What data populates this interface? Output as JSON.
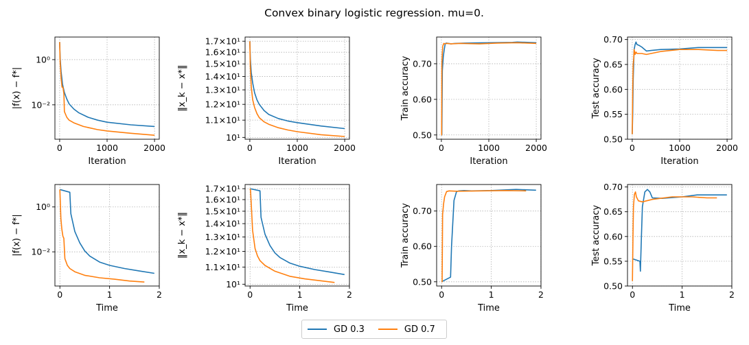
{
  "figure": {
    "title": "Convex binary logistic regression. mu=0."
  },
  "colors": {
    "gd03": "#1f77b4",
    "gd07": "#ff7f0e",
    "grid": "#b0b0b0"
  },
  "legend": [
    {
      "label": "GD 0.3",
      "color": "#1f77b4"
    },
    {
      "label": "GD 0.7",
      "color": "#ff7f0e"
    }
  ],
  "chart_data": [
    {
      "type": "line",
      "xlabel": "Iteration",
      "ylabel": "|f(x) − f*|",
      "yscale": "log",
      "xticks": [
        0,
        1000,
        2000
      ],
      "yticks": [
        0.01,
        1
      ],
      "yticklabels": [
        "10⁻²",
        "10⁰"
      ],
      "xlim": [
        -100,
        2100
      ],
      "ylim": [
        0.0003,
        10
      ],
      "grid": true,
      "series": [
        {
          "name": "GD 0.3",
          "x": [
            0,
            10,
            30,
            60,
            100,
            150,
            200,
            300,
            400,
            600,
            800,
            1000,
            1500,
            2000
          ],
          "y": [
            6,
            1.2,
            0.3,
            0.08,
            0.035,
            0.018,
            0.011,
            0.0065,
            0.0045,
            0.0028,
            0.0021,
            0.0017,
            0.0013,
            0.0011
          ]
        },
        {
          "name": "GD 0.7",
          "x": [
            0,
            10,
            30,
            50,
            70,
            90,
            100,
            150,
            200,
            300,
            500,
            800,
            1000,
            1500,
            2000
          ],
          "y": [
            6,
            0.8,
            0.15,
            0.06,
            0.06,
            0.03,
            0.005,
            0.0028,
            0.0021,
            0.0016,
            0.0011,
            0.0008,
            0.0007,
            0.00055,
            0.00045
          ]
        }
      ]
    },
    {
      "type": "line",
      "xlabel": "Iteration",
      "ylabel": "‖x_k − x*‖",
      "yscale": "log",
      "xticks": [
        0,
        1000,
        2000
      ],
      "yticks": [
        10,
        11,
        12,
        13,
        14,
        15,
        16,
        17
      ],
      "yticklabels": [
        "10¹",
        "1.1×10¹",
        "1.2×10¹",
        "1.3×10¹",
        "1.4×10¹",
        "1.5×10¹",
        "1.6×10¹",
        "1.7×10¹"
      ],
      "xlim": [
        -100,
        2100
      ],
      "ylim": [
        9.9,
        17.4
      ],
      "grid": true,
      "series": [
        {
          "name": "GD 0.3",
          "x": [
            0,
            10,
            30,
            60,
            100,
            150,
            200,
            300,
            400,
            600,
            800,
            1000,
            1500,
            2000
          ],
          "y": [
            17,
            15.5,
            14.3,
            13.5,
            12.8,
            12.3,
            12.0,
            11.6,
            11.35,
            11.1,
            10.95,
            10.85,
            10.65,
            10.5
          ]
        },
        {
          "name": "GD 0.7",
          "x": [
            0,
            10,
            30,
            60,
            100,
            150,
            200,
            300,
            400,
            600,
            800,
            1000,
            1500,
            2000
          ],
          "y": [
            17,
            14.8,
            13.2,
            12.3,
            11.8,
            11.4,
            11.15,
            10.9,
            10.75,
            10.55,
            10.42,
            10.32,
            10.15,
            10.05
          ]
        }
      ]
    },
    {
      "type": "line",
      "xlabel": "Iteration",
      "ylabel": "Train accuracy",
      "xticks": [
        0,
        1000,
        2000
      ],
      "yticks": [
        0.5,
        0.6,
        0.7
      ],
      "xlim": [
        -100,
        2100
      ],
      "ylim": [
        0.488,
        0.775
      ],
      "grid": true,
      "series": [
        {
          "name": "GD 0.3",
          "x": [
            0,
            10,
            20,
            40,
            60,
            80,
            100,
            150,
            200,
            300,
            500,
            1000,
            1500,
            1600,
            2000
          ],
          "y": [
            0.5,
            0.5,
            0.68,
            0.72,
            0.74,
            0.755,
            0.758,
            0.757,
            0.756,
            0.757,
            0.758,
            0.759,
            0.76,
            0.761,
            0.759
          ]
        },
        {
          "name": "GD 0.7",
          "x": [
            0,
            5,
            10,
            20,
            30,
            50,
            80,
            120,
            200,
            400,
            800,
            1200,
            1600,
            2000
          ],
          "y": [
            0.5,
            0.5,
            0.7,
            0.73,
            0.75,
            0.757,
            0.756,
            0.757,
            0.756,
            0.757,
            0.756,
            0.758,
            0.759,
            0.757
          ]
        }
      ]
    },
    {
      "type": "line",
      "xlabel": "Iteration",
      "ylabel": "Test accuracy",
      "xticks": [
        0,
        1000,
        2000
      ],
      "yticks": [
        0.5,
        0.55,
        0.6,
        0.65,
        0.7
      ],
      "xlim": [
        -100,
        2100
      ],
      "ylim": [
        0.5,
        0.705
      ],
      "grid": true,
      "series": [
        {
          "name": "GD 0.3",
          "x": [
            0,
            10,
            20,
            40,
            60,
            80,
            100,
            150,
            200,
            300,
            400,
            600,
            1000,
            1400,
            2000
          ],
          "y": [
            0.51,
            0.55,
            0.62,
            0.68,
            0.69,
            0.695,
            0.69,
            0.688,
            0.685,
            0.677,
            0.678,
            0.68,
            0.681,
            0.684,
            0.684
          ]
        },
        {
          "name": "GD 0.7",
          "x": [
            0,
            10,
            20,
            30,
            40,
            60,
            80,
            100,
            200,
            300,
            600,
            1000,
            1400,
            1800,
            2000
          ],
          "y": [
            0.51,
            0.6,
            0.65,
            0.66,
            0.68,
            0.67,
            0.675,
            0.672,
            0.672,
            0.67,
            0.676,
            0.68,
            0.68,
            0.678,
            0.678
          ]
        }
      ]
    },
    {
      "type": "line",
      "xlabel": "Time",
      "ylabel": "|f(x) − f*|",
      "yscale": "log",
      "xticks": [
        0,
        1,
        2
      ],
      "yticks": [
        0.01,
        1
      ],
      "yticklabels": [
        "10⁻²",
        "10⁰"
      ],
      "xlim": [
        -0.1,
        2.0
      ],
      "ylim": [
        0.0003,
        10
      ],
      "grid": true,
      "series": [
        {
          "name": "GD 0.3",
          "x": [
            0,
            0.2,
            0.22,
            0.3,
            0.4,
            0.5,
            0.6,
            0.8,
            1.0,
            1.3,
            1.6,
            1.9
          ],
          "y": [
            6,
            4.5,
            0.5,
            0.08,
            0.025,
            0.011,
            0.0065,
            0.0035,
            0.0025,
            0.0018,
            0.0014,
            0.0011
          ]
        },
        {
          "name": "GD 0.7",
          "x": [
            0,
            0.02,
            0.04,
            0.06,
            0.08,
            0.1,
            0.15,
            0.2,
            0.3,
            0.5,
            0.8,
            1.1,
            1.4,
            1.7
          ],
          "y": [
            6,
            0.3,
            0.1,
            0.05,
            0.04,
            0.005,
            0.0025,
            0.0018,
            0.0013,
            0.0009,
            0.0007,
            0.0006,
            0.0005,
            0.00045
          ]
        }
      ]
    },
    {
      "type": "line",
      "xlabel": "Time",
      "ylabel": "‖x_k − x*‖",
      "yscale": "log",
      "xticks": [
        0,
        1,
        2
      ],
      "yticks": [
        10,
        11,
        12,
        13,
        14,
        15,
        16,
        17
      ],
      "yticklabels": [
        "10¹",
        "1.1×10¹",
        "1.2×10¹",
        "1.3×10¹",
        "1.4×10¹",
        "1.5×10¹",
        "1.6×10¹",
        "1.7×10¹"
      ],
      "xlim": [
        -0.1,
        2.0
      ],
      "ylim": [
        9.9,
        17.4
      ],
      "grid": true,
      "series": [
        {
          "name": "GD 0.3",
          "x": [
            0,
            0.2,
            0.22,
            0.3,
            0.4,
            0.5,
            0.6,
            0.8,
            1.0,
            1.3,
            1.6,
            1.9
          ],
          "y": [
            17,
            16.8,
            14.5,
            13.2,
            12.4,
            11.9,
            11.6,
            11.25,
            11.05,
            10.85,
            10.7,
            10.55
          ]
        },
        {
          "name": "GD 0.7",
          "x": [
            0,
            0.01,
            0.05,
            0.1,
            0.15,
            0.2,
            0.3,
            0.5,
            0.8,
            1.1,
            1.4,
            1.7
          ],
          "y": [
            17,
            16.8,
            13.5,
            12.2,
            11.7,
            11.4,
            11.1,
            10.75,
            10.45,
            10.3,
            10.2,
            10.1
          ]
        }
      ]
    },
    {
      "type": "line",
      "xlabel": "Time",
      "ylabel": "Train accuracy",
      "xticks": [
        0,
        1,
        2
      ],
      "yticks": [
        0.5,
        0.6,
        0.7
      ],
      "xlim": [
        -0.1,
        2.0
      ],
      "ylim": [
        0.488,
        0.775
      ],
      "grid": true,
      "series": [
        {
          "name": "GD 0.3",
          "x": [
            0,
            0.18,
            0.2,
            0.25,
            0.3,
            0.35,
            0.45,
            0.6,
            1.0,
            1.5,
            1.9
          ],
          "y": [
            0.5,
            0.513,
            0.6,
            0.73,
            0.755,
            0.757,
            0.758,
            0.757,
            0.758,
            0.761,
            0.759
          ]
        },
        {
          "name": "GD 0.7",
          "x": [
            0,
            0.01,
            0.02,
            0.04,
            0.06,
            0.1,
            0.15,
            0.3,
            0.8,
            1.3,
            1.7
          ],
          "y": [
            0.5,
            0.5,
            0.69,
            0.72,
            0.74,
            0.755,
            0.757,
            0.756,
            0.757,
            0.758,
            0.757
          ]
        }
      ]
    },
    {
      "type": "line",
      "xlabel": "Time",
      "ylabel": "Test accuracy",
      "xticks": [
        0,
        1,
        2
      ],
      "yticks": [
        0.5,
        0.55,
        0.6,
        0.65,
        0.7
      ],
      "xlim": [
        -0.1,
        2.0
      ],
      "ylim": [
        0.5,
        0.705
      ],
      "grid": true,
      "series": [
        {
          "name": "GD 0.3",
          "x": [
            0,
            0.15,
            0.16,
            0.18,
            0.2,
            0.25,
            0.3,
            0.35,
            0.4,
            0.6,
            1.0,
            1.3,
            1.9
          ],
          "y": [
            0.555,
            0.55,
            0.53,
            0.6,
            0.66,
            0.69,
            0.695,
            0.69,
            0.678,
            0.677,
            0.68,
            0.684,
            0.684
          ]
        },
        {
          "name": "GD 0.7",
          "x": [
            0,
            0.01,
            0.02,
            0.04,
            0.06,
            0.08,
            0.12,
            0.2,
            0.4,
            0.8,
            1.2,
            1.5,
            1.7
          ],
          "y": [
            0.51,
            0.6,
            0.66,
            0.685,
            0.69,
            0.68,
            0.672,
            0.67,
            0.675,
            0.68,
            0.68,
            0.678,
            0.678
          ]
        }
      ]
    }
  ]
}
